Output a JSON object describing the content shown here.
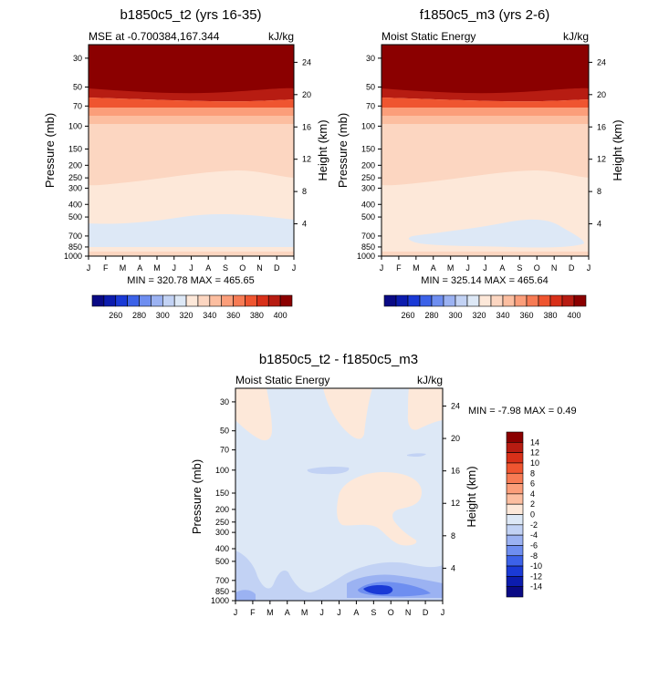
{
  "months": [
    "J",
    "F",
    "M",
    "A",
    "M",
    "J",
    "J",
    "A",
    "S",
    "O",
    "N",
    "D",
    "J"
  ],
  "pressure_ticks": [
    30,
    50,
    70,
    100,
    150,
    200,
    250,
    300,
    400,
    500,
    700,
    850,
    1000
  ],
  "height_ticks": [
    24,
    20,
    16,
    12,
    8,
    4
  ],
  "height_label": "Height (km)",
  "pressure_label": "Pressure (mb)",
  "chart_data": [
    {
      "type": "heatmap",
      "title": "b1850c5_t2 (yrs 16-35)",
      "left_subtitle": "MSE at -0.700384,167.344",
      "right_subtitle": "kJ/kg",
      "stats": "MIN = 320.78  MAX = 465.65",
      "ylabel": "Pressure (mb)",
      "y2label": "Height (km)",
      "xlabel": "",
      "colorbar_orientation": "horizontal",
      "colorbar_labels": [
        "260",
        "280",
        "300",
        "320",
        "340",
        "360",
        "380",
        "400"
      ],
      "colorbar_colors": [
        "#0a0a85",
        "#0c1cae",
        "#1a3ad6",
        "#3c62e8",
        "#6e8ef0",
        "#9bb2f2",
        "#c2d2f4",
        "#dde8f6",
        "#fde8d9",
        "#fcd6c1",
        "#fcbea0",
        "#fb9e7a",
        "#f77b54",
        "#ef5530",
        "#d83019",
        "#b71c12",
        "#8b0000"
      ],
      "min": 320.78,
      "max": 465.65
    },
    {
      "type": "heatmap",
      "title": "f1850c5_m3 (yrs 2-6)",
      "left_subtitle": "Moist Static Energy",
      "right_subtitle": "kJ/kg",
      "stats": "MIN = 325.14  MAX = 465.64",
      "ylabel": "Pressure (mb)",
      "y2label": "Height (km)",
      "xlabel": "",
      "colorbar_orientation": "horizontal",
      "colorbar_labels": [
        "260",
        "280",
        "300",
        "320",
        "340",
        "360",
        "380",
        "400"
      ],
      "colorbar_colors": [
        "#0a0a85",
        "#0c1cae",
        "#1a3ad6",
        "#3c62e8",
        "#6e8ef0",
        "#9bb2f2",
        "#c2d2f4",
        "#dde8f6",
        "#fde8d9",
        "#fcd6c1",
        "#fcbea0",
        "#fb9e7a",
        "#f77b54",
        "#ef5530",
        "#d83019",
        "#b71c12",
        "#8b0000"
      ],
      "min": 325.14,
      "max": 465.64
    },
    {
      "type": "heatmap",
      "title": "b1850c5_t2 - f1850c5_m3",
      "left_subtitle": "Moist Static Energy",
      "right_subtitle": "kJ/kg",
      "stats": "MIN =  -7.98 MAX =   0.49",
      "ylabel": "Pressure (mb)",
      "y2label": "Height (km)",
      "xlabel": "",
      "colorbar_orientation": "vertical",
      "colorbar_labels": [
        "14",
        "12",
        "10",
        "8",
        "6",
        "4",
        "2",
        "0",
        "-2",
        "-4",
        "-6",
        "-8",
        "-10",
        "-12",
        "-14"
      ],
      "colorbar_colors": [
        "#8b0000",
        "#b71c12",
        "#d83019",
        "#ef5530",
        "#f77b54",
        "#fb9e7a",
        "#fcbea0",
        "#fde8d9",
        "#dde8f6",
        "#c2d2f4",
        "#9bb2f2",
        "#6e8ef0",
        "#3c62e8",
        "#1a3ad6",
        "#0c1cae",
        "#0a0a85"
      ],
      "min": -7.98,
      "max": 0.49
    }
  ]
}
